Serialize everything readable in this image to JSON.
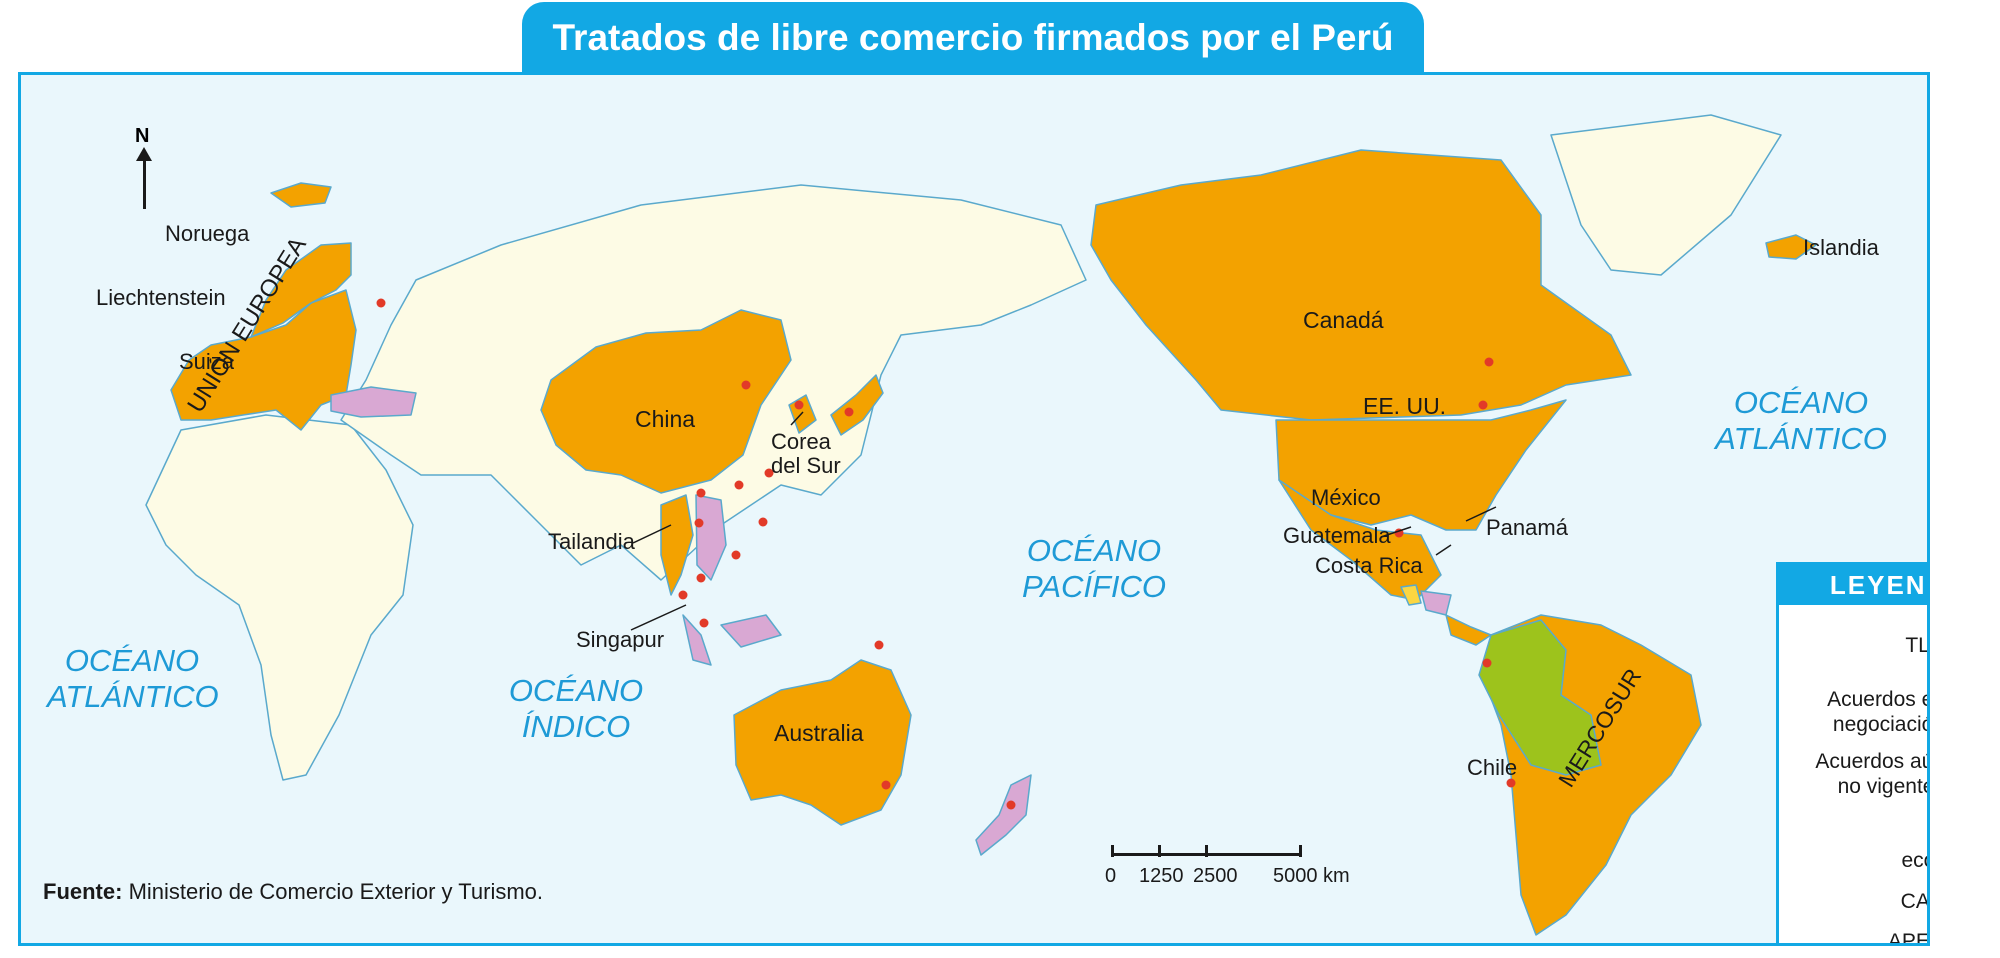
{
  "title": "Tratados de libre comercio firmados por el Perú",
  "colors": {
    "tlc": "#f3a200",
    "negotiation": "#d9a8d3",
    "not_in_force": "#fcd641",
    "can": "#9dc31c",
    "apec": "#e23a28",
    "ocean": "#eaf7fc",
    "land": "#fdfbe5",
    "accent": "#12a8e4"
  },
  "compass": {
    "label": "N"
  },
  "oceans": {
    "atlantic_west": "OCÉANO\nATLÁNTICO",
    "indian": "OCÉANO\nÍNDICO",
    "pacific": "OCÉANO\nPACÍFICO",
    "atlantic_east": "OCÉANO\nATLÁNTICO"
  },
  "labels": {
    "noruega": "Noruega",
    "liechtenstein": "Liechtenstein",
    "suiza": "Suiza",
    "union_europea": "UNIÓN EUROPEA",
    "china": "China",
    "corea": "Corea\ndel Sur",
    "tailandia": "Tailandia",
    "singapur": "Singapur",
    "australia": "Australia",
    "canada": "Canadá",
    "eeuu": "EE. UU.",
    "mexico": "México",
    "guatemala": "Guatemala",
    "panama": "Panamá",
    "costa_rica": "Costa Rica",
    "chile": "Chile",
    "mercosur": "MERCOSUR",
    "islandia": "Islandia"
  },
  "source": {
    "bold": "Fuente:",
    "text": " Ministerio de Comercio Exterior y Turismo."
  },
  "scale": {
    "ticks": [
      "0",
      "1250",
      "2500",
      "5000 km"
    ]
  },
  "legend": {
    "title": "LEYENDA",
    "tlc": "TLC",
    "negotiation": "Acuerdos en\nnegociación",
    "not_in_force": "Acuerdos aún\nno vigentes",
    "bloc": "Bloque\neconómico",
    "can": "CAN",
    "apec": "APEC"
  }
}
